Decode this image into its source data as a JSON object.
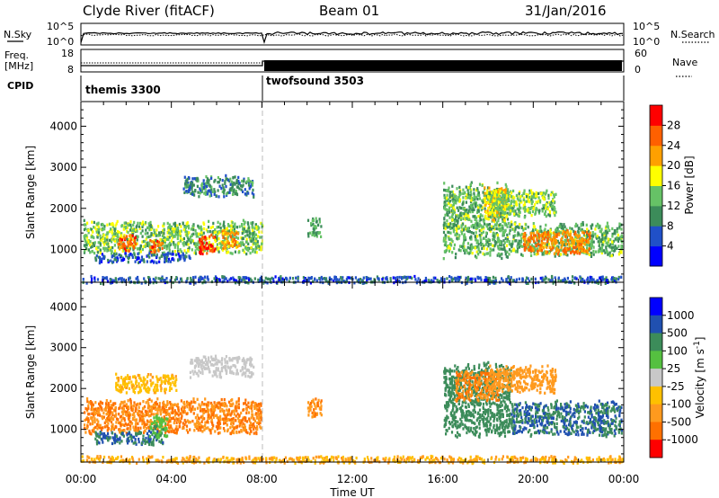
{
  "header": {
    "station": "Clyde River (fitACF)",
    "beam": "Beam 01",
    "date": "31/Jan/2016"
  },
  "noise_panel": {
    "left_label": "N.Sky",
    "left_ticks": [
      "10^5",
      "10^0"
    ],
    "right_label": "N.Search",
    "right_ticks": [
      "10^5",
      "10^0"
    ]
  },
  "freq_panel": {
    "left_label_1": "Freq.",
    "left_label_2": "[MHz]",
    "left_ticks": [
      "18",
      "8"
    ],
    "right_label": "Nave",
    "right_ticks": [
      "60",
      "0"
    ]
  },
  "cpid": {
    "label": "CPID",
    "modes": [
      {
        "name": "themis 3300",
        "start_hour": 0,
        "end_hour": 8
      },
      {
        "name": "twofsound 3503",
        "start_hour": 8,
        "end_hour": 24
      }
    ]
  },
  "x_axis": {
    "title": "Time UT",
    "ticks": [
      "00:00",
      "04:00",
      "08:00",
      "12:00",
      "16:00",
      "20:00",
      "00:00"
    ]
  },
  "colors": {
    "power_scale": [
      "#0000ff",
      "#2050c8",
      "#3c8c5a",
      "#66c266",
      "#ffff00",
      "#ffa000",
      "#ff6000",
      "#ff0000"
    ],
    "velocity_scale": [
      "#0000ff",
      "#2050b0",
      "#3c8c5a",
      "#55c040",
      "#c8c8c8",
      "#ffc000",
      "#ff9a1e",
      "#ff7000",
      "#ff0000"
    ]
  },
  "chart_data": [
    {
      "type": "heatmap",
      "title": "Power",
      "ylabel": "Slant Range [km]",
      "xlabel": "",
      "x_range_hours": [
        0,
        24
      ],
      "ylim": [
        200,
        4600
      ],
      "y_ticks": [
        1000,
        2000,
        3000,
        4000
      ],
      "colorbar": {
        "label": "Power [dB]",
        "range": [
          0,
          32
        ],
        "ticks": [
          "4",
          "8",
          "12",
          "16",
          "20",
          "24",
          "28"
        ]
      },
      "regions": [
        {
          "t0": 0.1,
          "t1": 8.0,
          "r0": 900,
          "r1": 1750,
          "value": 14
        },
        {
          "t0": 1.6,
          "t1": 2.4,
          "r0": 950,
          "r1": 1400,
          "value": 26
        },
        {
          "t0": 3.0,
          "t1": 3.6,
          "r0": 900,
          "r1": 1300,
          "value": 26
        },
        {
          "t0": 5.2,
          "t1": 5.9,
          "r0": 900,
          "r1": 1400,
          "value": 28
        },
        {
          "t0": 6.2,
          "t1": 7.0,
          "r0": 1050,
          "r1": 1550,
          "value": 22
        },
        {
          "t0": 0.6,
          "t1": 4.8,
          "r0": 700,
          "r1": 950,
          "value": 6
        },
        {
          "t0": 4.5,
          "t1": 7.6,
          "r0": 2300,
          "r1": 2850,
          "value": 10
        },
        {
          "t0": 0.0,
          "t1": 24.0,
          "r0": 200,
          "r1": 380,
          "value": 7
        },
        {
          "t0": 16.0,
          "t1": 19.0,
          "r0": 800,
          "r1": 2700,
          "value": 13
        },
        {
          "t0": 17.8,
          "t1": 18.8,
          "r0": 1700,
          "r1": 2600,
          "value": 20
        },
        {
          "t0": 19.0,
          "t1": 23.9,
          "r0": 850,
          "r1": 1700,
          "value": 13
        },
        {
          "t0": 19.5,
          "t1": 22.5,
          "r0": 900,
          "r1": 1500,
          "value": 24
        },
        {
          "t0": 18.0,
          "t1": 21.0,
          "r0": 1800,
          "r1": 2500,
          "value": 15
        },
        {
          "t0": 10.0,
          "t1": 10.6,
          "r0": 1300,
          "r1": 1800,
          "value": 12
        }
      ]
    },
    {
      "type": "heatmap",
      "title": "Velocity",
      "ylabel": "Slant Range [km]",
      "xlabel": "Time UT",
      "x_range_hours": [
        0,
        24
      ],
      "ylim": [
        200,
        4600
      ],
      "y_ticks": [
        1000,
        2000,
        3000,
        4000
      ],
      "colorbar": {
        "label": "Velocity [m s^-1]",
        "ticks": [
          "1000",
          "500",
          "100",
          "25",
          "-25",
          "-100",
          "-500",
          "-1000"
        ]
      },
      "regions": [
        {
          "t0": 0.1,
          "t1": 8.0,
          "r0": 900,
          "r1": 1800,
          "value": -300
        },
        {
          "t0": 0.6,
          "t1": 3.6,
          "r0": 650,
          "r1": 1000,
          "value": 300
        },
        {
          "t0": 3.0,
          "t1": 3.8,
          "r0": 800,
          "r1": 1400,
          "value": 50
        },
        {
          "t0": 1.5,
          "t1": 4.2,
          "r0": 1900,
          "r1": 2400,
          "value": -50
        },
        {
          "t0": 4.8,
          "t1": 7.6,
          "r0": 2300,
          "r1": 2850,
          "value": 0
        },
        {
          "t0": 0.0,
          "t1": 24.0,
          "r0": 200,
          "r1": 380,
          "value": -60
        },
        {
          "t0": 16.0,
          "t1": 19.0,
          "r0": 800,
          "r1": 2700,
          "value": 200
        },
        {
          "t0": 16.5,
          "t1": 18.5,
          "r0": 1700,
          "r1": 2500,
          "value": -300
        },
        {
          "t0": 18.0,
          "t1": 21.0,
          "r0": 1900,
          "r1": 2600,
          "value": -200
        },
        {
          "t0": 19.0,
          "t1": 23.9,
          "r0": 850,
          "r1": 1750,
          "value": 300
        },
        {
          "t0": 10.0,
          "t1": 10.6,
          "r0": 1300,
          "r1": 1800,
          "value": -300
        }
      ]
    }
  ]
}
